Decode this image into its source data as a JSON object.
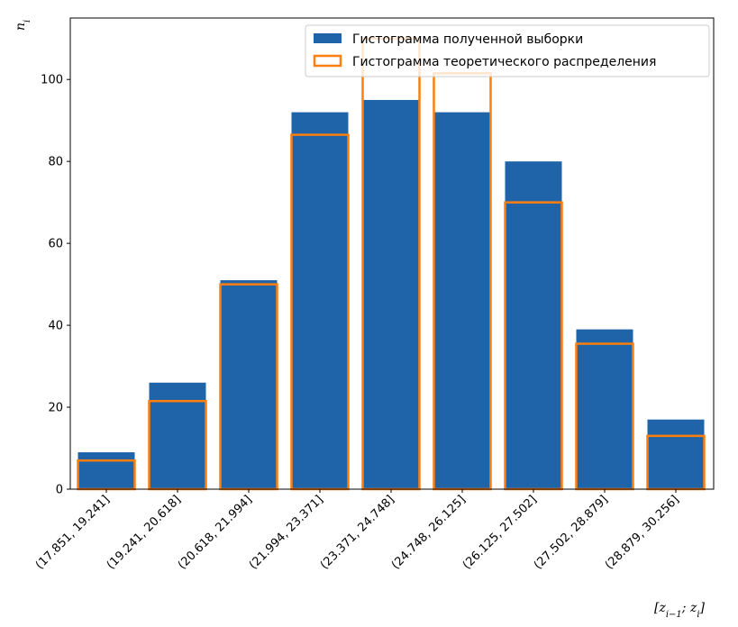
{
  "chart_data": {
    "type": "bar",
    "ylabel": "n_i",
    "xlabel": "[z_{i-1}; z_i]",
    "ylim": [
      0,
      115
    ],
    "yticks": [
      0,
      20,
      40,
      60,
      80,
      100
    ],
    "grid": false,
    "legend_position": "top-right",
    "categories": [
      "(17.851, 19.241]",
      "(19.241, 20.618]",
      "(20.618, 21.994]",
      "(21.994, 23.371]",
      "(23.371, 24.748]",
      "(24.748, 26.125]",
      "(26.125, 27.502]",
      "(27.502, 28.879]",
      "(28.879, 30.256]"
    ],
    "series": [
      {
        "name": "Гистограмма полученной выборки",
        "style": "filled",
        "color": "#1f63a8",
        "values": [
          9,
          26,
          51,
          92,
          95,
          92,
          80,
          39,
          17
        ]
      },
      {
        "name": "Гистограмма теоретического распределения",
        "style": "outline",
        "color": "#ff7f0e",
        "values": [
          7,
          21.5,
          50,
          86.5,
          110,
          101.5,
          70,
          35.5,
          13
        ]
      }
    ]
  }
}
